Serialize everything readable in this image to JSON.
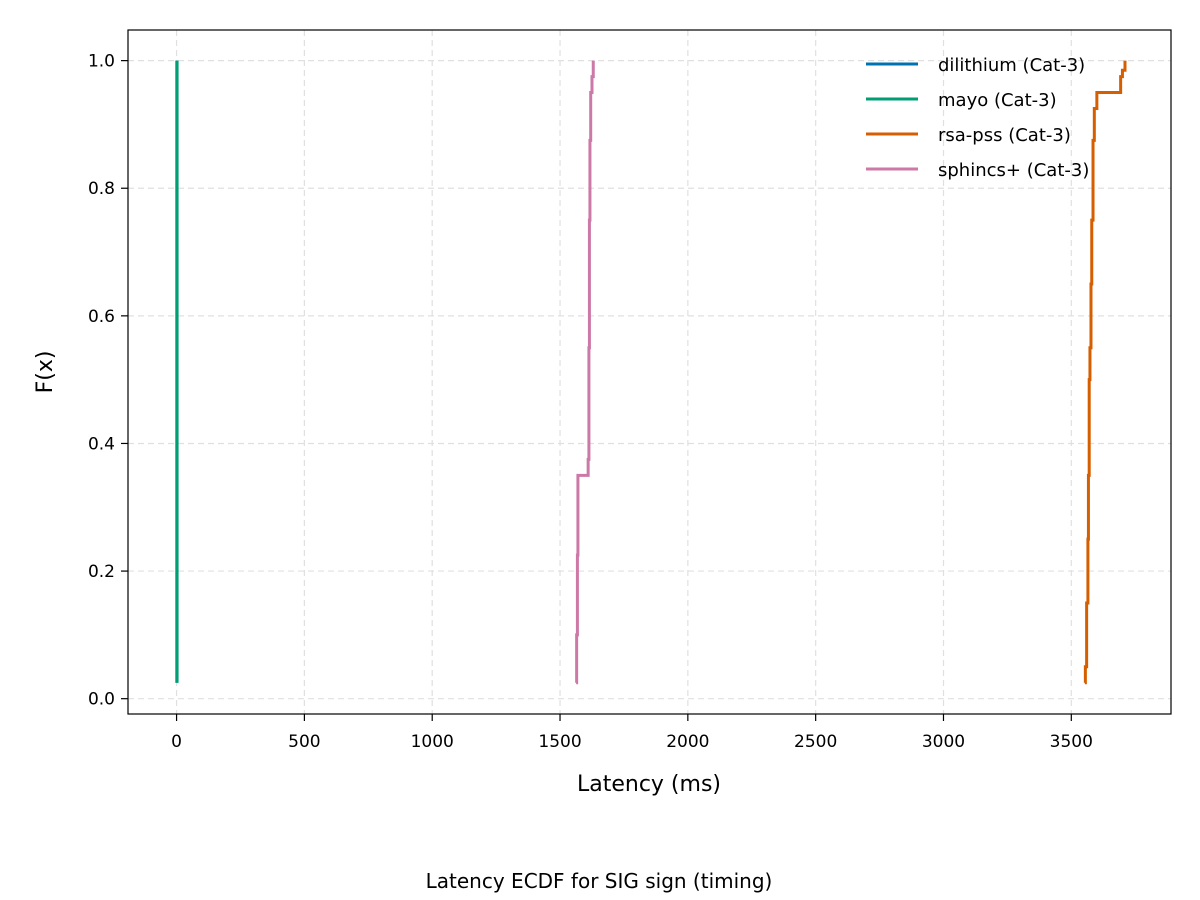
{
  "chart_data": {
    "type": "line",
    "step": true,
    "title": "",
    "caption": "Latency ECDF for SIG sign (timing)",
    "xlabel": "Latency (ms)",
    "ylabel": "F(x)",
    "xlim": [
      -190,
      3890
    ],
    "ylim": [
      -0.024,
      1.048
    ],
    "xticks": [
      0,
      500,
      1000,
      1500,
      2000,
      2500,
      3000,
      3500
    ],
    "xtick_labels": [
      "0",
      "500",
      "1000",
      "1500",
      "2000",
      "2500",
      "3000",
      "3500"
    ],
    "yticks": [
      0.0,
      0.2,
      0.4,
      0.6,
      0.8,
      1.0
    ],
    "ytick_labels": [
      "0.0",
      "0.2",
      "0.4",
      "0.6",
      "0.8",
      "1.0"
    ],
    "grid": true,
    "legend_position": "top-right",
    "series": [
      {
        "name": "dilithium (Cat-3)",
        "color": "#0072b2",
        "x": [
          1,
          1
        ],
        "y": [
          0.025,
          1.0
        ]
      },
      {
        "name": "mayo (Cat-3)",
        "color": "#009e73",
        "x": [
          2,
          2
        ],
        "y": [
          0.025,
          1.0
        ]
      },
      {
        "name": "rsa-pss (Cat-3)",
        "color": "#d55e00",
        "x": [
          3553,
          3555,
          3560,
          3565,
          3567,
          3570,
          3573,
          3577,
          3580,
          3585,
          3590,
          3600,
          3693,
          3700,
          3710
        ],
        "y": [
          0.025,
          0.05,
          0.15,
          0.25,
          0.35,
          0.5,
          0.55,
          0.65,
          0.75,
          0.875,
          0.925,
          0.95,
          0.975,
          0.985,
          1.0
        ]
      },
      {
        "name": "sphincs+ (Cat-3)",
        "color": "#cc79a7",
        "x": [
          1563,
          1565,
          1568,
          1570,
          1610,
          1613,
          1615,
          1617,
          1620,
          1625,
          1630
        ],
        "y": [
          0.025,
          0.1,
          0.225,
          0.35,
          0.375,
          0.55,
          0.75,
          0.875,
          0.95,
          0.975,
          1.0
        ]
      }
    ]
  }
}
